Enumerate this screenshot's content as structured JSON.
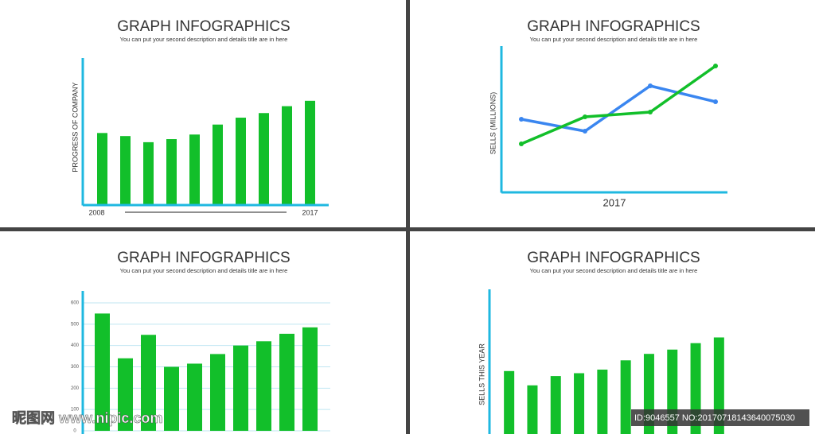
{
  "chart_data": [
    {
      "type": "bar",
      "title": "GRAPH INFOGRAPHICS",
      "subtitle": "You can put your second description and details title are in here",
      "ylabel": "PROGRESS OF COMPANY",
      "categories": [
        "2008",
        null,
        null,
        null,
        null,
        null,
        null,
        null,
        null,
        "2017"
      ],
      "values": [
        93,
        89,
        81,
        85,
        91,
        104,
        113,
        119,
        128,
        135
      ],
      "color": "#12bf2a",
      "ylim": [
        0,
        140
      ]
    },
    {
      "type": "line",
      "title": "GRAPH INFOGRAPHICS",
      "subtitle": "You can put your second description and details title are in here",
      "ylabel": "SELLS (MILLIONS)",
      "xlabel": "2017",
      "categories": [
        null,
        null,
        null,
        null
      ],
      "series": [
        {
          "color": "#3a86f0",
          "values": [
            91,
            76,
            133,
            113
          ]
        },
        {
          "color": "#12bf2a",
          "values": [
            60,
            94,
            100,
            158
          ]
        }
      ],
      "ylim": [
        0,
        180
      ]
    },
    {
      "type": "bar",
      "title": "GRAPH INFOGRAPHICS",
      "subtitle": "You can put your second description and details title are in here",
      "categories": [
        null,
        null,
        null,
        null,
        null,
        null,
        null,
        null,
        null,
        null
      ],
      "values": [
        550,
        340,
        450,
        300,
        315,
        360,
        400,
        420,
        455,
        485
      ],
      "color": "#12bf2a",
      "ylim": [
        0,
        600
      ],
      "yticks": [
        0,
        100,
        200,
        300,
        400,
        500,
        600
      ],
      "grid": true
    },
    {
      "type": "bar",
      "title": "GRAPH INFOGRAPHICS",
      "subtitle": "You can put your second description and details title are in here",
      "ylabel": "SELLS THIS YEAR",
      "categories": [
        null,
        null,
        null,
        null,
        null,
        null,
        null,
        null,
        null,
        null
      ],
      "values": [
        88,
        68,
        81,
        85,
        90,
        103,
        112,
        118,
        127,
        135
      ],
      "color": "#12bf2a",
      "ylim": [
        0,
        150
      ]
    }
  ],
  "watermark": {
    "left": "昵图网 www.nipic.com",
    "right": "ID:9046557 NO:20170718143640075030"
  }
}
